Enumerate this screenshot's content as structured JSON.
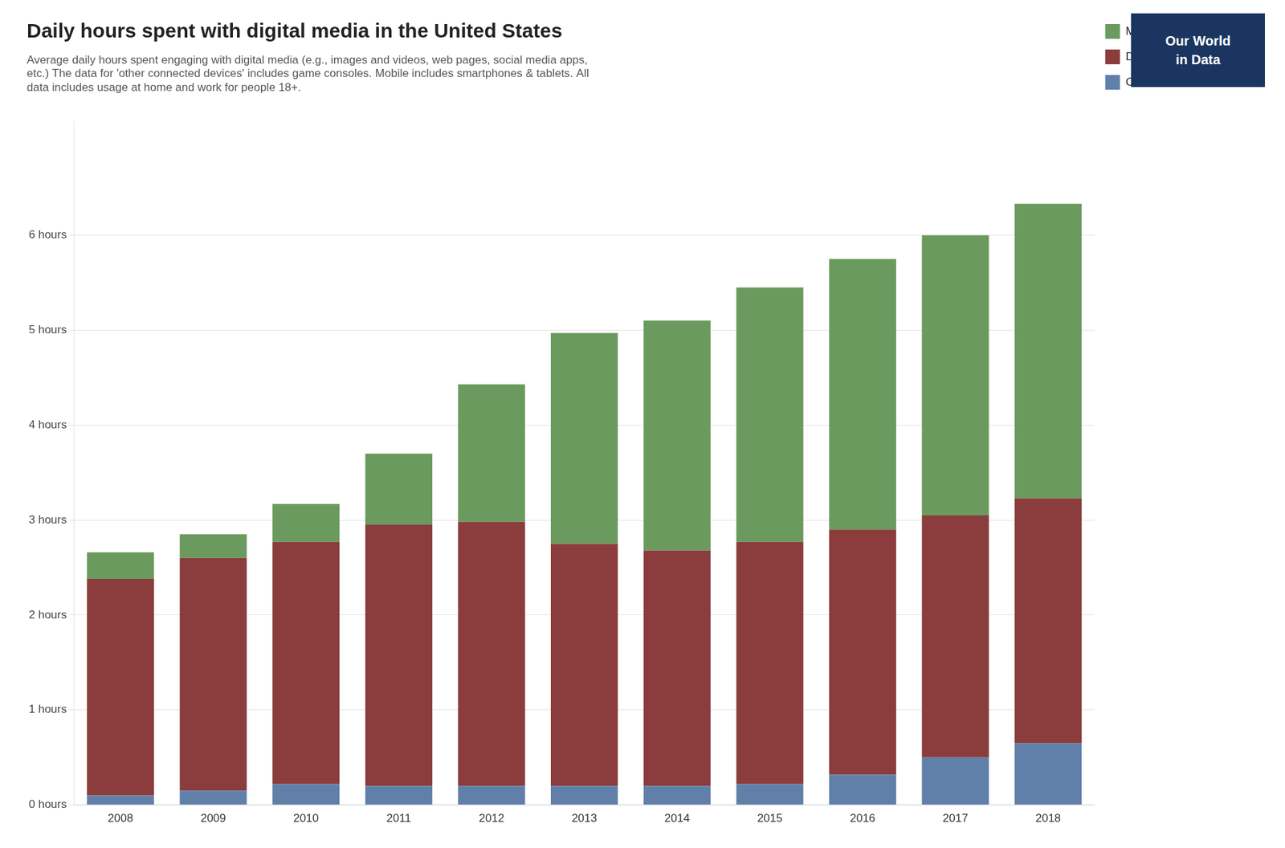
{
  "chart_data": {
    "type": "bar",
    "title": "Daily hours spent with digital media in the United States",
    "subtitle": "Average daily hours spent engaging with digital media (e.g., images and videos, web pages, social media apps,\netc.) The data for 'other connected devices' includes game consoles. Mobile includes smartphones & tablets. All\ndata includes usage at home and work for people 18+.",
    "categories": [
      "2008",
      "2009",
      "2010",
      "2011",
      "2012",
      "2013",
      "2014",
      "2015",
      "2016",
      "2017",
      "2018"
    ],
    "series": [
      {
        "name": "Other connected devices",
        "color": "#6080aa",
        "values": [
          0.1,
          0.15,
          0.22,
          0.2,
          0.2,
          0.2,
          0.2,
          0.22,
          0.32,
          0.5,
          0.65
        ]
      },
      {
        "name": "Desktop/Laptop",
        "color": "#8b3c3c",
        "values": [
          2.28,
          2.45,
          2.55,
          2.75,
          2.78,
          2.55,
          2.48,
          2.55,
          2.58,
          2.55,
          2.58
        ]
      },
      {
        "name": "Mobile",
        "color": "#6b9a5e",
        "values": [
          0.28,
          0.25,
          0.4,
          0.75,
          1.45,
          2.22,
          2.42,
          2.68,
          2.85,
          2.95,
          3.1
        ]
      }
    ],
    "stacked": true,
    "ylim": [
      0,
      7.2
    ],
    "yticks": [
      {
        "value": 0,
        "label": "0 hours"
      },
      {
        "value": 1,
        "label": "1 hours"
      },
      {
        "value": 2,
        "label": "2 hours"
      },
      {
        "value": 3,
        "label": "3 hours"
      },
      {
        "value": 4,
        "label": "4 hours"
      },
      {
        "value": 5,
        "label": "5 hours"
      },
      {
        "value": 6,
        "label": "6 hours"
      }
    ],
    "grid": true,
    "legend": "right",
    "annotations": [
      {
        "text": "Our World\nin Data",
        "color": "#1a3560"
      }
    ]
  }
}
